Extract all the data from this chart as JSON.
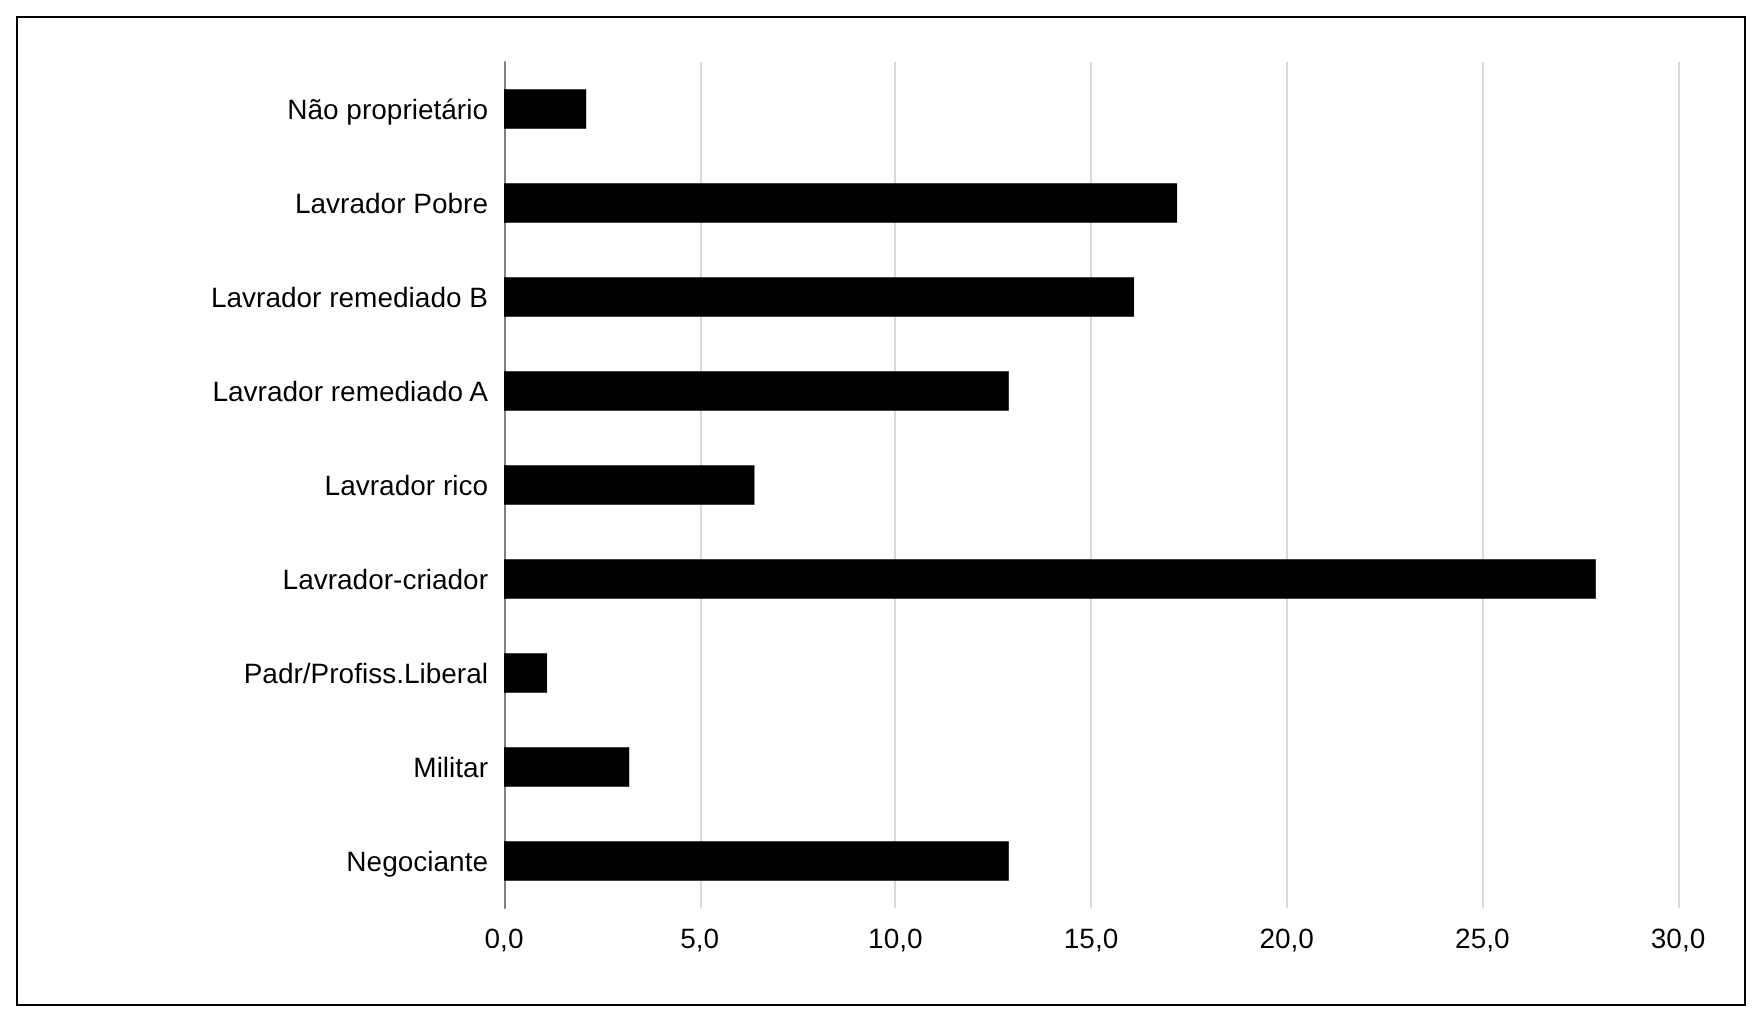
{
  "chart_data": {
    "type": "bar",
    "orientation": "horizontal",
    "categories": [
      "Não proprietário",
      "Lavrador Pobre",
      "Lavrador remediado B",
      "Lavrador remediado A",
      "Lavrador rico",
      "Lavrador-criador",
      "Padr/Profiss.Liberal",
      "Militar",
      "Negociante"
    ],
    "values": [
      2.1,
      17.2,
      16.1,
      12.9,
      6.4,
      27.9,
      1.1,
      3.2,
      12.9
    ],
    "color": "#000000",
    "xlim": [
      0,
      30
    ],
    "xticks": [
      {
        "value": 0,
        "label": "0,0"
      },
      {
        "value": 5,
        "label": "5,0"
      },
      {
        "value": 10,
        "label": "10,0"
      },
      {
        "value": 15,
        "label": "15,0"
      },
      {
        "value": 20,
        "label": "20,0"
      },
      {
        "value": 25,
        "label": "25,0"
      },
      {
        "value": 30,
        "label": "30,0"
      }
    ],
    "grid": "x"
  }
}
